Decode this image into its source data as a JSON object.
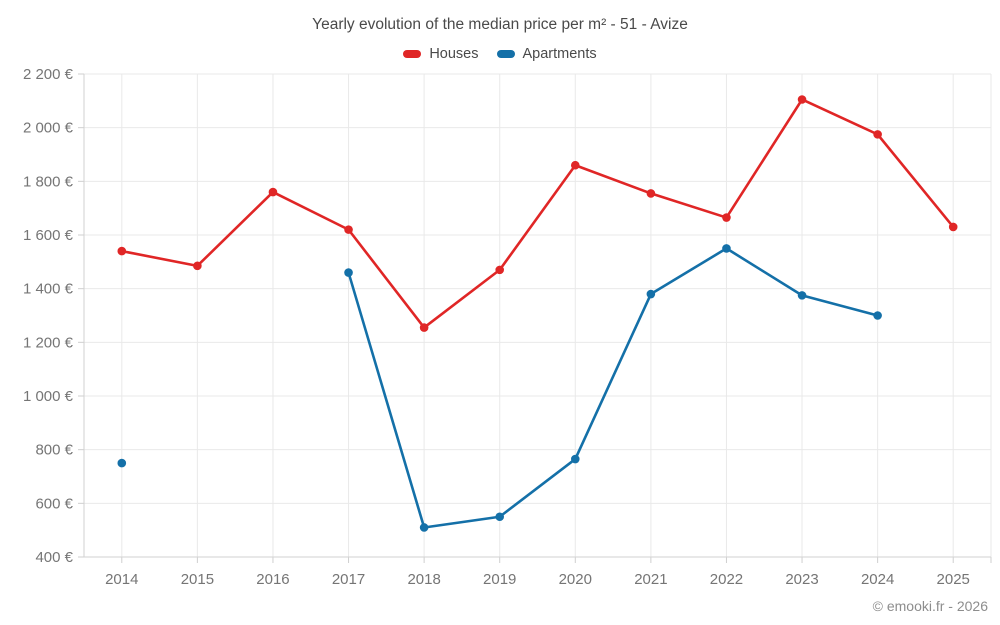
{
  "header": {
    "title": "Yearly evolution of the median price per m² - 51 - Avize"
  },
  "footer": {
    "copyright": "© emooki.fr - 2026"
  },
  "chart_data": {
    "type": "line",
    "title": "Yearly evolution of the median price per m² - 51 - Avize",
    "categories": [
      "2014",
      "2015",
      "2016",
      "2017",
      "2018",
      "2019",
      "2020",
      "2021",
      "2022",
      "2023",
      "2024",
      "2025"
    ],
    "series": [
      {
        "name": "Houses",
        "color": "#e02626",
        "values": [
          1540,
          1485,
          1760,
          1620,
          1255,
          1470,
          1860,
          1755,
          1665,
          2105,
          1975,
          1630
        ]
      },
      {
        "name": "Apartments",
        "color": "#1470a8",
        "values": [
          750,
          null,
          null,
          1460,
          510,
          550,
          765,
          1380,
          1550,
          1375,
          1300,
          null
        ]
      }
    ],
    "xlabel": "",
    "ylabel": "",
    "ylim": [
      400,
      2200
    ],
    "ytick_step": 200,
    "ytick_suffix": " €",
    "thousands_separator": " ",
    "grid": true,
    "legend_position": "top",
    "marker": "circle"
  }
}
